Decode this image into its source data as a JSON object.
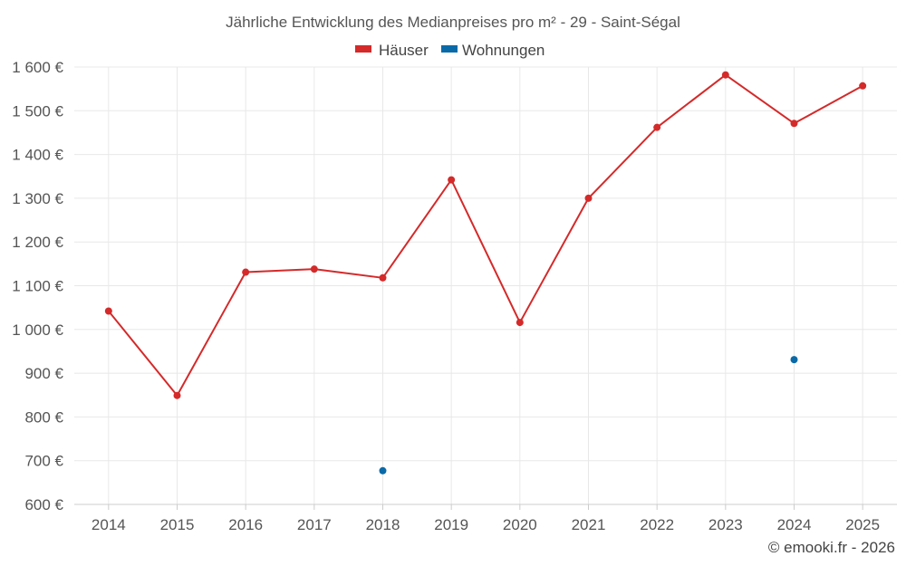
{
  "chart_data": {
    "type": "line",
    "title": "Jährliche Entwicklung des Medianpreises pro m² - 29 - Saint-Ségal",
    "categories": [
      "2014",
      "2015",
      "2016",
      "2017",
      "2018",
      "2019",
      "2020",
      "2021",
      "2022",
      "2023",
      "2024",
      "2025"
    ],
    "ylim": [
      600,
      1600
    ],
    "yticks": [
      600,
      700,
      800,
      900,
      1000,
      1100,
      1200,
      1300,
      1400,
      1500,
      1600
    ],
    "ytick_labels": [
      "600 €",
      "700 €",
      "800 €",
      "900 €",
      "1 000 €",
      "1 100 €",
      "1 200 €",
      "1 300 €",
      "1 400 €",
      "1 500 €",
      "1 600 €"
    ],
    "grid": true,
    "legend_position": "top-center",
    "series": [
      {
        "name": "Häuser",
        "color": "#d42a2a",
        "values": [
          1042,
          849,
          1131,
          1138,
          1118,
          1342,
          1016,
          1300,
          1462,
          1582,
          1471,
          1557
        ]
      },
      {
        "name": "Wohnungen",
        "color": "#0a6aa8",
        "values": [
          null,
          null,
          null,
          null,
          677,
          null,
          null,
          null,
          null,
          null,
          931,
          null
        ]
      }
    ]
  },
  "credit": "© emooki.fr - 2026"
}
